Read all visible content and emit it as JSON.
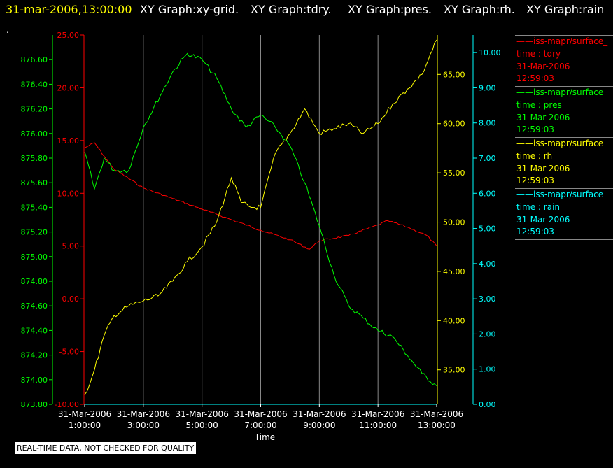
{
  "header": {
    "timestamp": "31-mar-2006,13:00:00",
    "graphs": [
      "XY Graph:xy-grid.",
      "XY Graph:tdry.",
      "XY Graph:pres.",
      "XY Graph:rh.",
      "XY Graph:rain"
    ],
    "dot": "."
  },
  "legend": [
    {
      "title": "iss-mapr/surface_",
      "var": "time : tdry",
      "date": "31-Mar-2006",
      "time": "12:59:03",
      "color": "#ff0000"
    },
    {
      "title": "iss-mapr/surface_",
      "var": "time : pres",
      "date": "31-Mar-2006",
      "time": "12:59:03",
      "color": "#00ff00"
    },
    {
      "title": "iss-mapr/surface_",
      "var": "time : rh",
      "date": "31-Mar-2006",
      "time": "12:59:03",
      "color": "#ffff00"
    },
    {
      "title": "iss-mapr/surface_",
      "var": "time : rain",
      "date": "31-Mar-2006",
      "time": "12:59:03",
      "color": "#00ffff"
    }
  ],
  "notice": "REAL-TIME DATA, NOT CHECKED FOR QUALITY",
  "chart_data": {
    "type": "line",
    "xlabel": "Time",
    "x_ticks": [
      {
        "date": "31-Mar-2006",
        "time": "1:00:00"
      },
      {
        "date": "31-Mar-2006",
        "time": "3:00:00"
      },
      {
        "date": "31-Mar-2006",
        "time": "5:00:00"
      },
      {
        "date": "31-Mar-2006",
        "time": "7:00:00"
      },
      {
        "date": "31-Mar-2006",
        "time": "9:00:00"
      },
      {
        "date": "31-Mar-2006",
        "time": "11:00:00"
      },
      {
        "date": "31-Mar-2006",
        "time": "13:00:00"
      }
    ],
    "xlim_hours": [
      1,
      13
    ],
    "grid": "vertical",
    "axes": {
      "tdry": {
        "color": "#ff0000",
        "range": [
          -10,
          25
        ],
        "ticks": [
          "25.00",
          "20.00",
          "15.00",
          "10.00",
          "5.00",
          "0.00",
          "-5.00",
          "-10.00"
        ]
      },
      "pres": {
        "color": "#00ff00",
        "range": [
          873.8,
          876.8
        ],
        "ticks": [
          "873.80",
          "874.00",
          "874.20",
          "874.40",
          "874.60",
          "874.80",
          "875.00",
          "875.20",
          "875.40",
          "875.60",
          "875.80",
          "876.00",
          "876.20",
          "876.40",
          "876.60"
        ]
      },
      "rh": {
        "color": "#ffff00",
        "range": [
          31.5,
          69.0
        ],
        "ticks": [
          "35.00",
          "40.00",
          "45.00",
          "50.00",
          "55.00",
          "60.00",
          "65.00"
        ]
      },
      "rain": {
        "color": "#00ffff",
        "range": [
          0,
          10.5
        ],
        "ticks": [
          "0.00",
          "1.00",
          "2.00",
          "3.00",
          "4.00",
          "5.00",
          "6.00",
          "7.00",
          "8.00",
          "9.00",
          "10.00"
        ]
      }
    },
    "series": [
      {
        "name": "tdry",
        "axis": "tdry",
        "color": "#ff0000",
        "x": [
          "1:00",
          "1:20",
          "1:40",
          "2:00",
          "3:00",
          "4:00",
          "5:00",
          "6:00",
          "7:00",
          "8:00",
          "8:40",
          "9:00",
          "10:00",
          "11:00",
          "11:20",
          "12:00",
          "12:40",
          "13:00"
        ],
        "y": [
          14.3,
          14.8,
          13.5,
          12.3,
          10.5,
          9.5,
          8.5,
          7.5,
          6.5,
          5.6,
          4.7,
          5.5,
          6.0,
          7.0,
          7.4,
          6.8,
          6.0,
          5.0
        ]
      },
      {
        "name": "pres",
        "axis": "pres",
        "color": "#00ff00",
        "x": [
          "1:00",
          "1:20",
          "1:40",
          "2:00",
          "2:30",
          "3:00",
          "4:00",
          "4:30",
          "5:00",
          "5:30",
          "6:00",
          "6:30",
          "7:00",
          "7:30",
          "8:00",
          "8:30",
          "9:00",
          "9:30",
          "10:00",
          "10:30",
          "11:00",
          "11:30",
          "12:00",
          "12:30",
          "13:00"
        ],
        "y": [
          875.85,
          875.55,
          875.8,
          875.7,
          875.7,
          876.05,
          876.5,
          876.65,
          876.6,
          876.45,
          876.2,
          876.05,
          876.15,
          876.05,
          875.9,
          875.6,
          875.25,
          874.85,
          874.6,
          874.5,
          874.4,
          874.35,
          874.2,
          874.05,
          873.95
        ]
      },
      {
        "name": "rh",
        "axis": "rh",
        "color": "#ffff00",
        "x": [
          "1:00",
          "1:10",
          "1:20",
          "1:40",
          "2:00",
          "2:30",
          "3:00",
          "3:30",
          "4:00",
          "4:30",
          "5:00",
          "5:30",
          "6:00",
          "6:20",
          "6:40",
          "7:00",
          "7:30",
          "8:00",
          "8:30",
          "9:00",
          "9:30",
          "10:00",
          "10:30",
          "11:00",
          "11:30",
          "12:00",
          "12:30",
          "13:00"
        ],
        "y": [
          32.5,
          33.5,
          35.0,
          38.5,
          40.5,
          41.5,
          42.0,
          42.5,
          44.0,
          46.0,
          47.5,
          50.0,
          54.5,
          52.0,
          51.5,
          51.5,
          57.0,
          59.0,
          61.5,
          59.0,
          59.5,
          60.0,
          59.0,
          60.0,
          62.0,
          63.5,
          65.0,
          68.5
        ]
      },
      {
        "name": "rain",
        "axis": "rain",
        "color": "#00ffff",
        "x": [
          "1:00",
          "13:00"
        ],
        "y": [
          0.0,
          0.0
        ]
      }
    ]
  }
}
